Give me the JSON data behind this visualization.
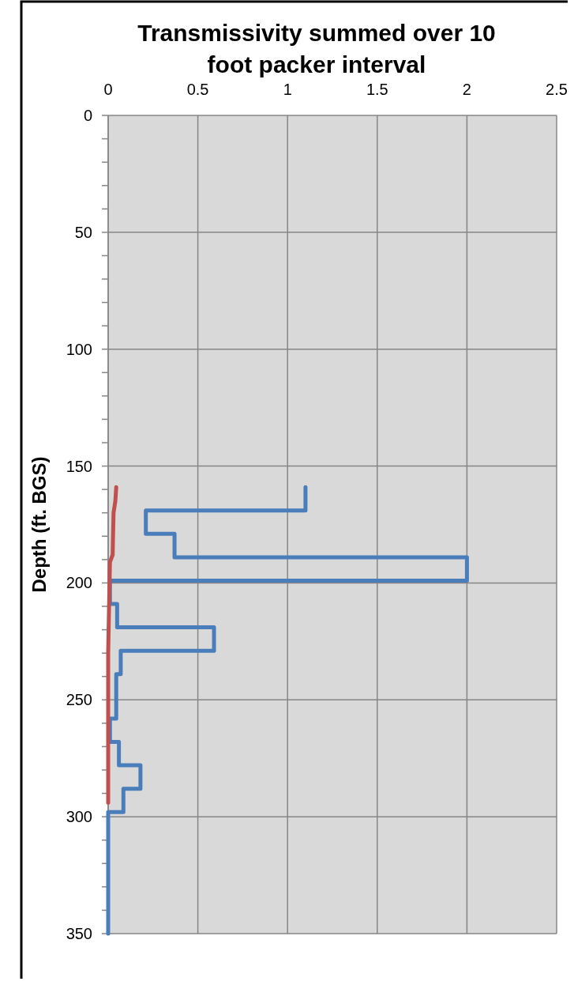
{
  "chart_data": {
    "type": "line",
    "title": "Transmissivity summed over 10 foot packer interval",
    "ylabel": "Depth (ft. BGS)",
    "xlim": [
      0,
      2.5
    ],
    "xticks": [
      0,
      0.5,
      1,
      1.5,
      2,
      2.5
    ],
    "ylim": [
      350,
      0
    ],
    "yticks": [
      0,
      {
        "value": 10,
        "label": null
      },
      {
        "value": 20,
        "label": null
      },
      {
        "value": 30,
        "label": null
      },
      {
        "value": 40,
        "label": null
      },
      50,
      {
        "value": 60,
        "label": null
      },
      {
        "value": 70,
        "label": null
      },
      {
        "value": 80,
        "label": null
      },
      {
        "value": 90,
        "label": null
      },
      100,
      {
        "value": 110,
        "label": null
      },
      {
        "value": 120,
        "label": null
      },
      {
        "value": 130,
        "label": null
      },
      {
        "value": 140,
        "label": null
      },
      150,
      {
        "value": 160,
        "label": null
      },
      {
        "value": 170,
        "label": null
      },
      {
        "value": 180,
        "label": null
      },
      {
        "value": 190,
        "label": null
      },
      200,
      {
        "value": 210,
        "label": null
      },
      {
        "value": 220,
        "label": null
      },
      {
        "value": 230,
        "label": null
      },
      {
        "value": 240,
        "label": null
      },
      250,
      {
        "value": 260,
        "label": null
      },
      {
        "value": 270,
        "label": null
      },
      {
        "value": 280,
        "label": null
      },
      {
        "value": 290,
        "label": null
      },
      300,
      {
        "value": 310,
        "label": null
      },
      {
        "value": 320,
        "label": null
      },
      {
        "value": 330,
        "label": null
      },
      {
        "value": 340,
        "label": null
      },
      350
    ],
    "grid": true,
    "marker": "none",
    "series": [
      {
        "color": "#4a7ebb",
        "x": [
          1.1,
          1.1,
          0.21,
          0.21,
          0.37,
          0.37,
          2.0,
          2.0,
          0.01,
          0.01,
          0.05,
          0.05,
          0.59,
          0.59,
          0.07,
          0.07,
          0.045,
          0.045,
          0.01,
          0.01,
          0.06,
          0.06,
          0.18,
          0.18,
          0.085,
          0.085,
          0.0,
          0.0
        ],
        "values": [
          159,
          169,
          169,
          179,
          179,
          189,
          189,
          199,
          199,
          209,
          209,
          219,
          219,
          229,
          229,
          239,
          239,
          258,
          258,
          268,
          268,
          278,
          278,
          288,
          288,
          298,
          298,
          350
        ]
      },
      {
        "color": "#c0504d",
        "x": [
          0.045,
          0.04,
          0.03,
          0.025,
          0.01,
          0.005,
          0.0,
          0.0
        ],
        "values": [
          159,
          165,
          170,
          188,
          191,
          210,
          230,
          294
        ]
      }
    ]
  }
}
